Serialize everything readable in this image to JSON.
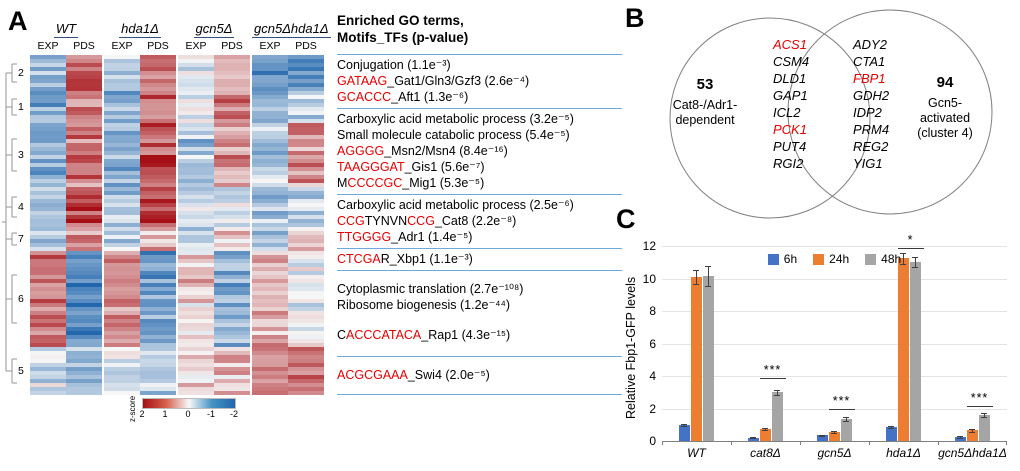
{
  "panelA": {
    "label": "A",
    "groups": [
      {
        "name": "WT",
        "subs": [
          "EXP",
          "PDS"
        ]
      },
      {
        "name": "hda1Δ",
        "subs": [
          "EXP",
          "PDS"
        ]
      },
      {
        "name": "gcn5Δ",
        "subs": [
          "EXP",
          "PDS"
        ]
      },
      {
        "name": "gcn5Δhda1Δ",
        "subs": [
          "EXP",
          "PDS"
        ]
      }
    ],
    "go_title_line1": "Enriched GO terms,",
    "go_title_line2": "Motifs_TFs (p-value)",
    "colorbar": {
      "label": "z-score",
      "ticks": [
        "2",
        "1",
        "0",
        "-1",
        "-2"
      ]
    },
    "go_items": [
      {
        "type": "sep"
      },
      {
        "type": "line",
        "segments": [
          {
            "text": "Conjugation (1.1e⁻³)"
          }
        ]
      },
      {
        "type": "line",
        "segments": [
          {
            "text": "GATAAG",
            "color": "#e50000"
          },
          {
            "text": "_Gat1/Gln3/Gzf3 (2.6e⁻⁴)"
          }
        ]
      },
      {
        "type": "line",
        "segments": [
          {
            "text": "GCACCC",
            "color": "#e50000"
          },
          {
            "text": "_Aft1 (1.3e⁻⁶)"
          }
        ]
      },
      {
        "type": "sep"
      },
      {
        "type": "line",
        "segments": [
          {
            "text": "Carboxylic acid metabolic process (3.2e⁻⁵)"
          }
        ]
      },
      {
        "type": "line",
        "segments": [
          {
            "text": "Small molecule catabolic process (5.4e⁻⁵)"
          }
        ]
      },
      {
        "type": "line",
        "segments": [
          {
            "text": "AGGGG",
            "color": "#e50000"
          },
          {
            "text": "_Msn2/Msn4 (8.4e⁻¹⁶)"
          }
        ]
      },
      {
        "type": "line",
        "segments": [
          {
            "text": "TAAGGGAT",
            "color": "#e50000"
          },
          {
            "text": "_Gis1 (5.6e⁻⁷)"
          }
        ]
      },
      {
        "type": "line",
        "segments": [
          {
            "text": "M"
          },
          {
            "text": "CCCCGC",
            "color": "#e50000"
          },
          {
            "text": "_Mig1 (5.3e⁻⁵)"
          }
        ]
      },
      {
        "type": "sep"
      },
      {
        "type": "line",
        "segments": [
          {
            "text": "Carboxylic acid metabolic process (2.5e⁻⁶)"
          }
        ]
      },
      {
        "type": "line",
        "segments": [
          {
            "text": "CCG",
            "color": "#e50000"
          },
          {
            "text": "TYNVN"
          },
          {
            "text": "CCG",
            "color": "#e50000"
          },
          {
            "text": "_Cat8 (2.2e⁻⁸)"
          }
        ]
      },
      {
        "type": "line",
        "segments": [
          {
            "text": "TTGGGG",
            "color": "#e50000"
          },
          {
            "text": "_Adr1 (1.4e⁻⁵)"
          }
        ]
      },
      {
        "type": "sep"
      },
      {
        "type": "line",
        "segments": [
          {
            "text": "CTCGA",
            "color": "#e50000"
          },
          {
            "text": "R"
          },
          {
            "text": "_Xbp1 (1.1e⁻³)"
          }
        ]
      },
      {
        "type": "sep"
      },
      {
        "type": "line",
        "mt": 10,
        "segments": [
          {
            "text": "Cytoplasmic translation (2.7e⁻¹⁰⁸)"
          }
        ]
      },
      {
        "type": "line",
        "segments": [
          {
            "text": "Ribosome biogenesis (1.2e⁻⁴⁴)"
          }
        ]
      },
      {
        "type": "line",
        "mt": 14,
        "segments": [
          {
            "text": "C"
          },
          {
            "text": "ACCCATACA",
            "color": "#e50000"
          },
          {
            "text": "_Rap1 (4.3e⁻¹⁵)"
          }
        ]
      },
      {
        "type": "sep",
        "mt": 10
      },
      {
        "type": "line",
        "mt": 10,
        "segments": [
          {
            "text": "ACGCGAAA",
            "color": "#e50000"
          },
          {
            "text": "_Swi4 (2.0e⁻⁵)"
          }
        ]
      },
      {
        "type": "sep",
        "mt": 8
      }
    ]
  },
  "panelB": {
    "label": "B",
    "left_count": "53",
    "left_label_lines": [
      "Cat8-/Adr1-",
      "dependent"
    ],
    "right_count": "94",
    "right_label_lines": [
      "Gcn5-",
      "activated",
      "(cluster 4)"
    ],
    "genes": [
      {
        "name": "ACS1",
        "highlight": true
      },
      {
        "name": "ADY2"
      },
      {
        "name": "CSM4"
      },
      {
        "name": "CTA1"
      },
      {
        "name": "DLD1"
      },
      {
        "name": "FBP1",
        "highlight": true
      },
      {
        "name": "GAP1"
      },
      {
        "name": "GDH2"
      },
      {
        "name": "ICL2"
      },
      {
        "name": "IDP2"
      },
      {
        "name": "PCK1",
        "highlight": true
      },
      {
        "name": "PRM4"
      },
      {
        "name": "PUT4"
      },
      {
        "name": "REG2"
      },
      {
        "name": "RGI2"
      },
      {
        "name": "YIG1"
      }
    ],
    "highlight_color": "#e50000"
  },
  "panelC": {
    "label": "C"
  },
  "chart_data": [
    {
      "type": "heatmap",
      "title": "Gene expression z-scores across strains and growth phases",
      "columns": [
        "WT EXP",
        "WT PDS",
        "hda1Δ EXP",
        "hda1Δ PDS",
        "gcn5Δ EXP",
        "gcn5Δ PDS",
        "gcn5Δhda1Δ EXP",
        "gcn5Δhda1Δ PDS"
      ],
      "scale": {
        "label": "z-score",
        "min": -2,
        "max": 2
      },
      "clusters": [
        {
          "id": "2",
          "rows": 9,
          "col_means": [
            -0.9,
            1.2,
            -0.5,
            1.1,
            -0.2,
            0.7,
            -1.6,
            -1.3
          ]
        },
        {
          "id": "1",
          "rows": 8,
          "col_means": [
            -1.1,
            0.9,
            -0.9,
            1.2,
            -0.4,
            1.0,
            -0.9,
            -0.6
          ]
        },
        {
          "id": "3",
          "rows": 16,
          "col_means": [
            -1.2,
            1.1,
            -1.0,
            1.4,
            -0.7,
            0.7,
            -0.7,
            0.9
          ]
        },
        {
          "id": "4",
          "rows": 10,
          "col_means": [
            -0.8,
            1.6,
            -0.7,
            1.5,
            -0.4,
            -0.4,
            -0.7,
            -0.5
          ]
        },
        {
          "id": "7",
          "rows": 6,
          "col_means": [
            -0.5,
            0.9,
            -0.4,
            0.8,
            -0.6,
            0.6,
            -0.8,
            0.7
          ]
        },
        {
          "id": "6",
          "rows": 24,
          "col_means": [
            1.0,
            -1.3,
            0.9,
            -1.2,
            0.4,
            -0.9,
            0.7,
            -0.1
          ]
        },
        {
          "id": "5",
          "rows": 12,
          "col_means": [
            -0.4,
            -0.7,
            -0.3,
            -0.8,
            0.2,
            0.5,
            0.8,
            1.2
          ]
        }
      ]
    },
    {
      "type": "bar",
      "categories": [
        "WT",
        "cat8Δ",
        "gcn5Δ",
        "hda1Δ",
        "gcn5Δhda1Δ"
      ],
      "series": [
        {
          "name": "6h",
          "color": "#4472c4",
          "values": [
            1.0,
            0.2,
            0.35,
            0.85,
            0.25
          ],
          "errors": [
            0.06,
            0.04,
            0.05,
            0.07,
            0.04
          ]
        },
        {
          "name": "24h",
          "color": "#ed7d31",
          "values": [
            10.1,
            0.75,
            0.55,
            11.25,
            0.65
          ],
          "errors": [
            0.45,
            0.08,
            0.06,
            0.35,
            0.07
          ]
        },
        {
          "name": "48h",
          "color": "#a5a5a5",
          "values": [
            10.15,
            3.0,
            1.35,
            11.0,
            1.6
          ],
          "errors": [
            0.6,
            0.15,
            0.1,
            0.3,
            0.12
          ]
        }
      ],
      "ylabel": "Relative Fbp1-GFP levels",
      "ylim": [
        0,
        12
      ],
      "yticks": [
        0,
        2,
        4,
        6,
        8,
        10,
        12
      ],
      "grid": true,
      "legend_position": "top",
      "significance": [
        {
          "category": "cat8Δ",
          "label": "***",
          "y": 3.85
        },
        {
          "category": "gcn5Δ",
          "label": "***",
          "y": 1.95
        },
        {
          "category": "hda1Δ",
          "label": "*",
          "y": 11.9
        },
        {
          "category": "gcn5Δhda1Δ",
          "label": "***",
          "y": 2.15
        }
      ]
    }
  ]
}
